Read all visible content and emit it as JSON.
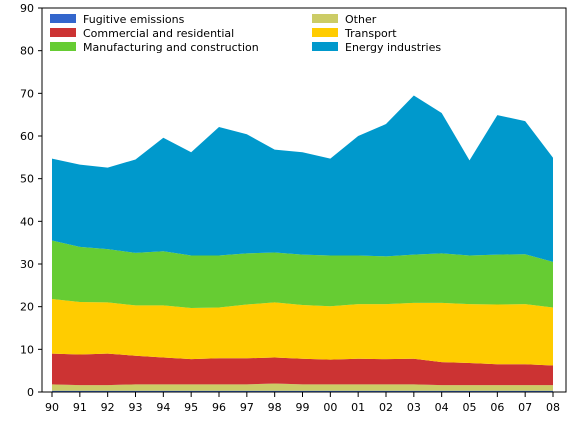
{
  "chart_data": {
    "type": "area",
    "stacked": true,
    "title": "",
    "xlabel": "",
    "ylabel": "",
    "ylim": [
      0,
      90
    ],
    "yticks": [
      0,
      10,
      20,
      30,
      40,
      50,
      60,
      70,
      80,
      90
    ],
    "grid": false,
    "legend_position": "top-left, two columns",
    "categories": [
      "90",
      "91",
      "92",
      "93",
      "94",
      "95",
      "96",
      "97",
      "98",
      "99",
      "00",
      "01",
      "02",
      "03",
      "04",
      "05",
      "06",
      "07",
      "08"
    ],
    "series": [
      {
        "name": "Fugitive emissions",
        "color": "#3366cc",
        "values": [
          0.3,
          0.3,
          0.3,
          0.3,
          0.3,
          0.3,
          0.3,
          0.3,
          0.3,
          0.3,
          0.3,
          0.3,
          0.3,
          0.3,
          0.3,
          0.3,
          0.3,
          0.3,
          0.3
        ]
      },
      {
        "name": "Other",
        "color": "#cccc66",
        "values": [
          1.5,
          1.3,
          1.3,
          1.5,
          1.5,
          1.5,
          1.5,
          1.5,
          1.7,
          1.5,
          1.5,
          1.5,
          1.5,
          1.5,
          1.3,
          1.3,
          1.3,
          1.3,
          1.3
        ]
      },
      {
        "name": "Commercial and residential",
        "color": "#cc3333",
        "values": [
          7.2,
          7.2,
          7.4,
          6.7,
          6.3,
          5.9,
          6.1,
          6.1,
          6.1,
          6.0,
          5.8,
          6.0,
          5.9,
          6.0,
          5.4,
          5.2,
          4.9,
          4.9,
          4.6
        ]
      },
      {
        "name": "Transport",
        "color": "#ffcc00",
        "values": [
          12.8,
          12.3,
          12.0,
          11.8,
          12.2,
          12.0,
          11.9,
          12.6,
          12.9,
          12.6,
          12.5,
          12.8,
          12.9,
          13.1,
          13.9,
          13.8,
          14.0,
          14.1,
          13.6
        ]
      },
      {
        "name": "Manufacturing and construction",
        "color": "#66cc33",
        "values": [
          13.7,
          12.9,
          12.5,
          12.3,
          12.7,
          12.3,
          12.2,
          12.0,
          11.7,
          11.8,
          11.9,
          11.4,
          11.2,
          11.3,
          11.6,
          11.4,
          11.7,
          11.7,
          10.7
        ]
      },
      {
        "name": "Energy industries",
        "color": "#0099cc",
        "values": [
          19.2,
          19.3,
          19.1,
          21.9,
          26.6,
          24.2,
          30.1,
          27.9,
          24.1,
          24.0,
          22.7,
          28.0,
          31.0,
          37.3,
          32.9,
          22.3,
          32.7,
          31.2,
          24.4
        ]
      }
    ],
    "legend": [
      {
        "name": "Fugitive emissions",
        "color": "#3366cc"
      },
      {
        "name": "Other",
        "color": "#cccc66"
      },
      {
        "name": "Commercial and residential",
        "color": "#cc3333"
      },
      {
        "name": "Transport",
        "color": "#ffcc00"
      },
      {
        "name": "Manufacturing and construction",
        "color": "#66cc33"
      },
      {
        "name": "Energy industries",
        "color": "#0099cc"
      }
    ]
  }
}
